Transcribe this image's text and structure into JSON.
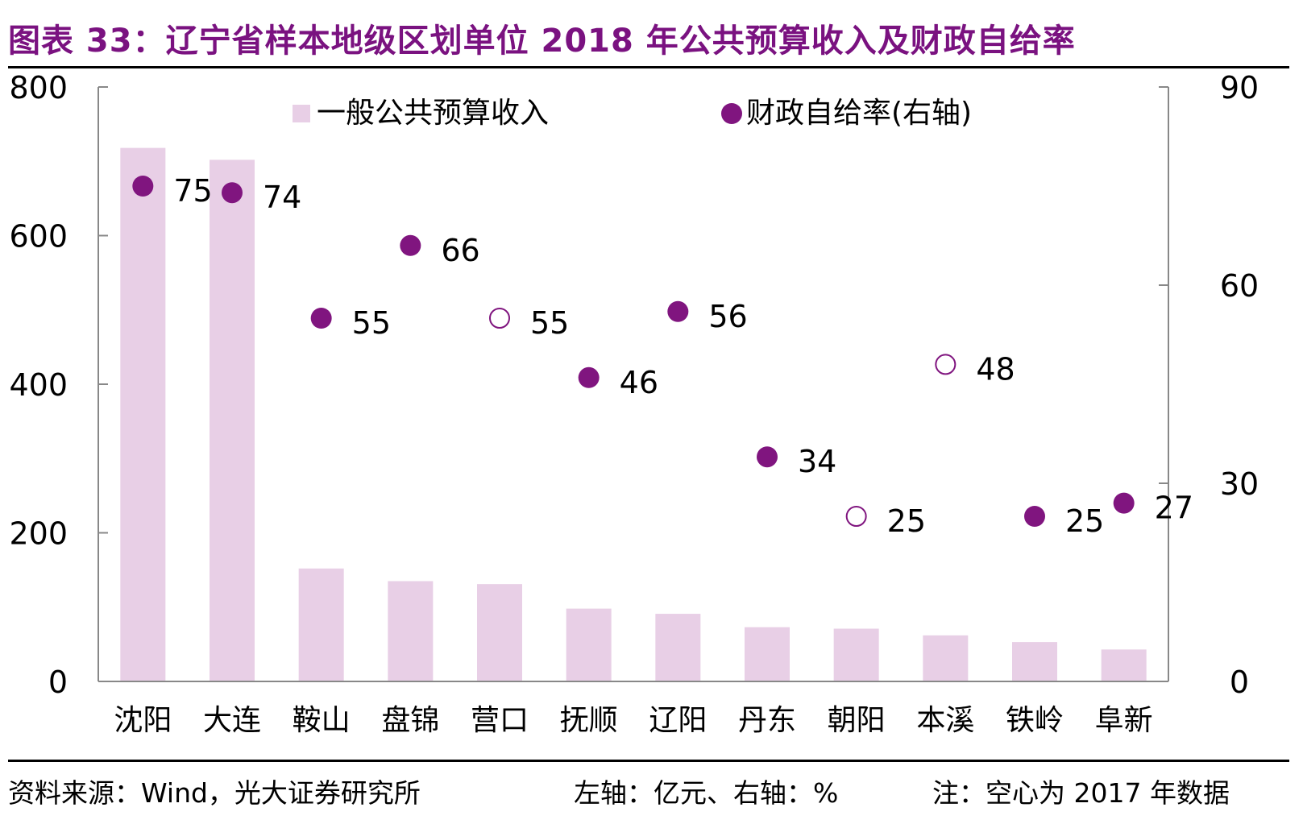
{
  "title": "图表 33：辽宁省样本地级区划单位 2018 年公共预算收入及财政自给率",
  "footer": {
    "source": "资料来源：Wind，光大证券研究所",
    "axes_note": "左轴：亿元、右轴：%",
    "note": "注：空心为 2017 年数据"
  },
  "colors": {
    "bar": "#e8cfe6",
    "point": "#80157f",
    "axis": "#888888",
    "title": "#7a1280"
  },
  "chart_data": {
    "type": "bar",
    "categories": [
      "沈阳",
      "大连",
      "鞍山",
      "盘锦",
      "营口",
      "抚顺",
      "辽阳",
      "丹东",
      "朝阳",
      "本溪",
      "铁岭",
      "阜新"
    ],
    "left_axis": {
      "ylim": [
        0,
        800
      ],
      "ticks": [
        0,
        200,
        400,
        600,
        800
      ]
    },
    "right_axis": {
      "ylim": [
        0,
        90
      ],
      "ticks": [
        0,
        30,
        60,
        90
      ]
    },
    "legend_position": "top",
    "series": [
      {
        "name": "一般公共预算收入",
        "type": "bar",
        "axis": "left",
        "values": [
          718,
          702,
          152,
          135,
          131,
          98,
          91,
          73,
          71,
          62,
          53,
          43
        ]
      },
      {
        "name": "财政自给率(右轴)",
        "type": "scatter",
        "axis": "right",
        "values": [
          75,
          74,
          55,
          66,
          55,
          46,
          56,
          34,
          25,
          48,
          25,
          27
        ],
        "hollow": [
          false,
          false,
          false,
          false,
          true,
          false,
          false,
          false,
          true,
          true,
          false,
          false
        ]
      }
    ]
  }
}
